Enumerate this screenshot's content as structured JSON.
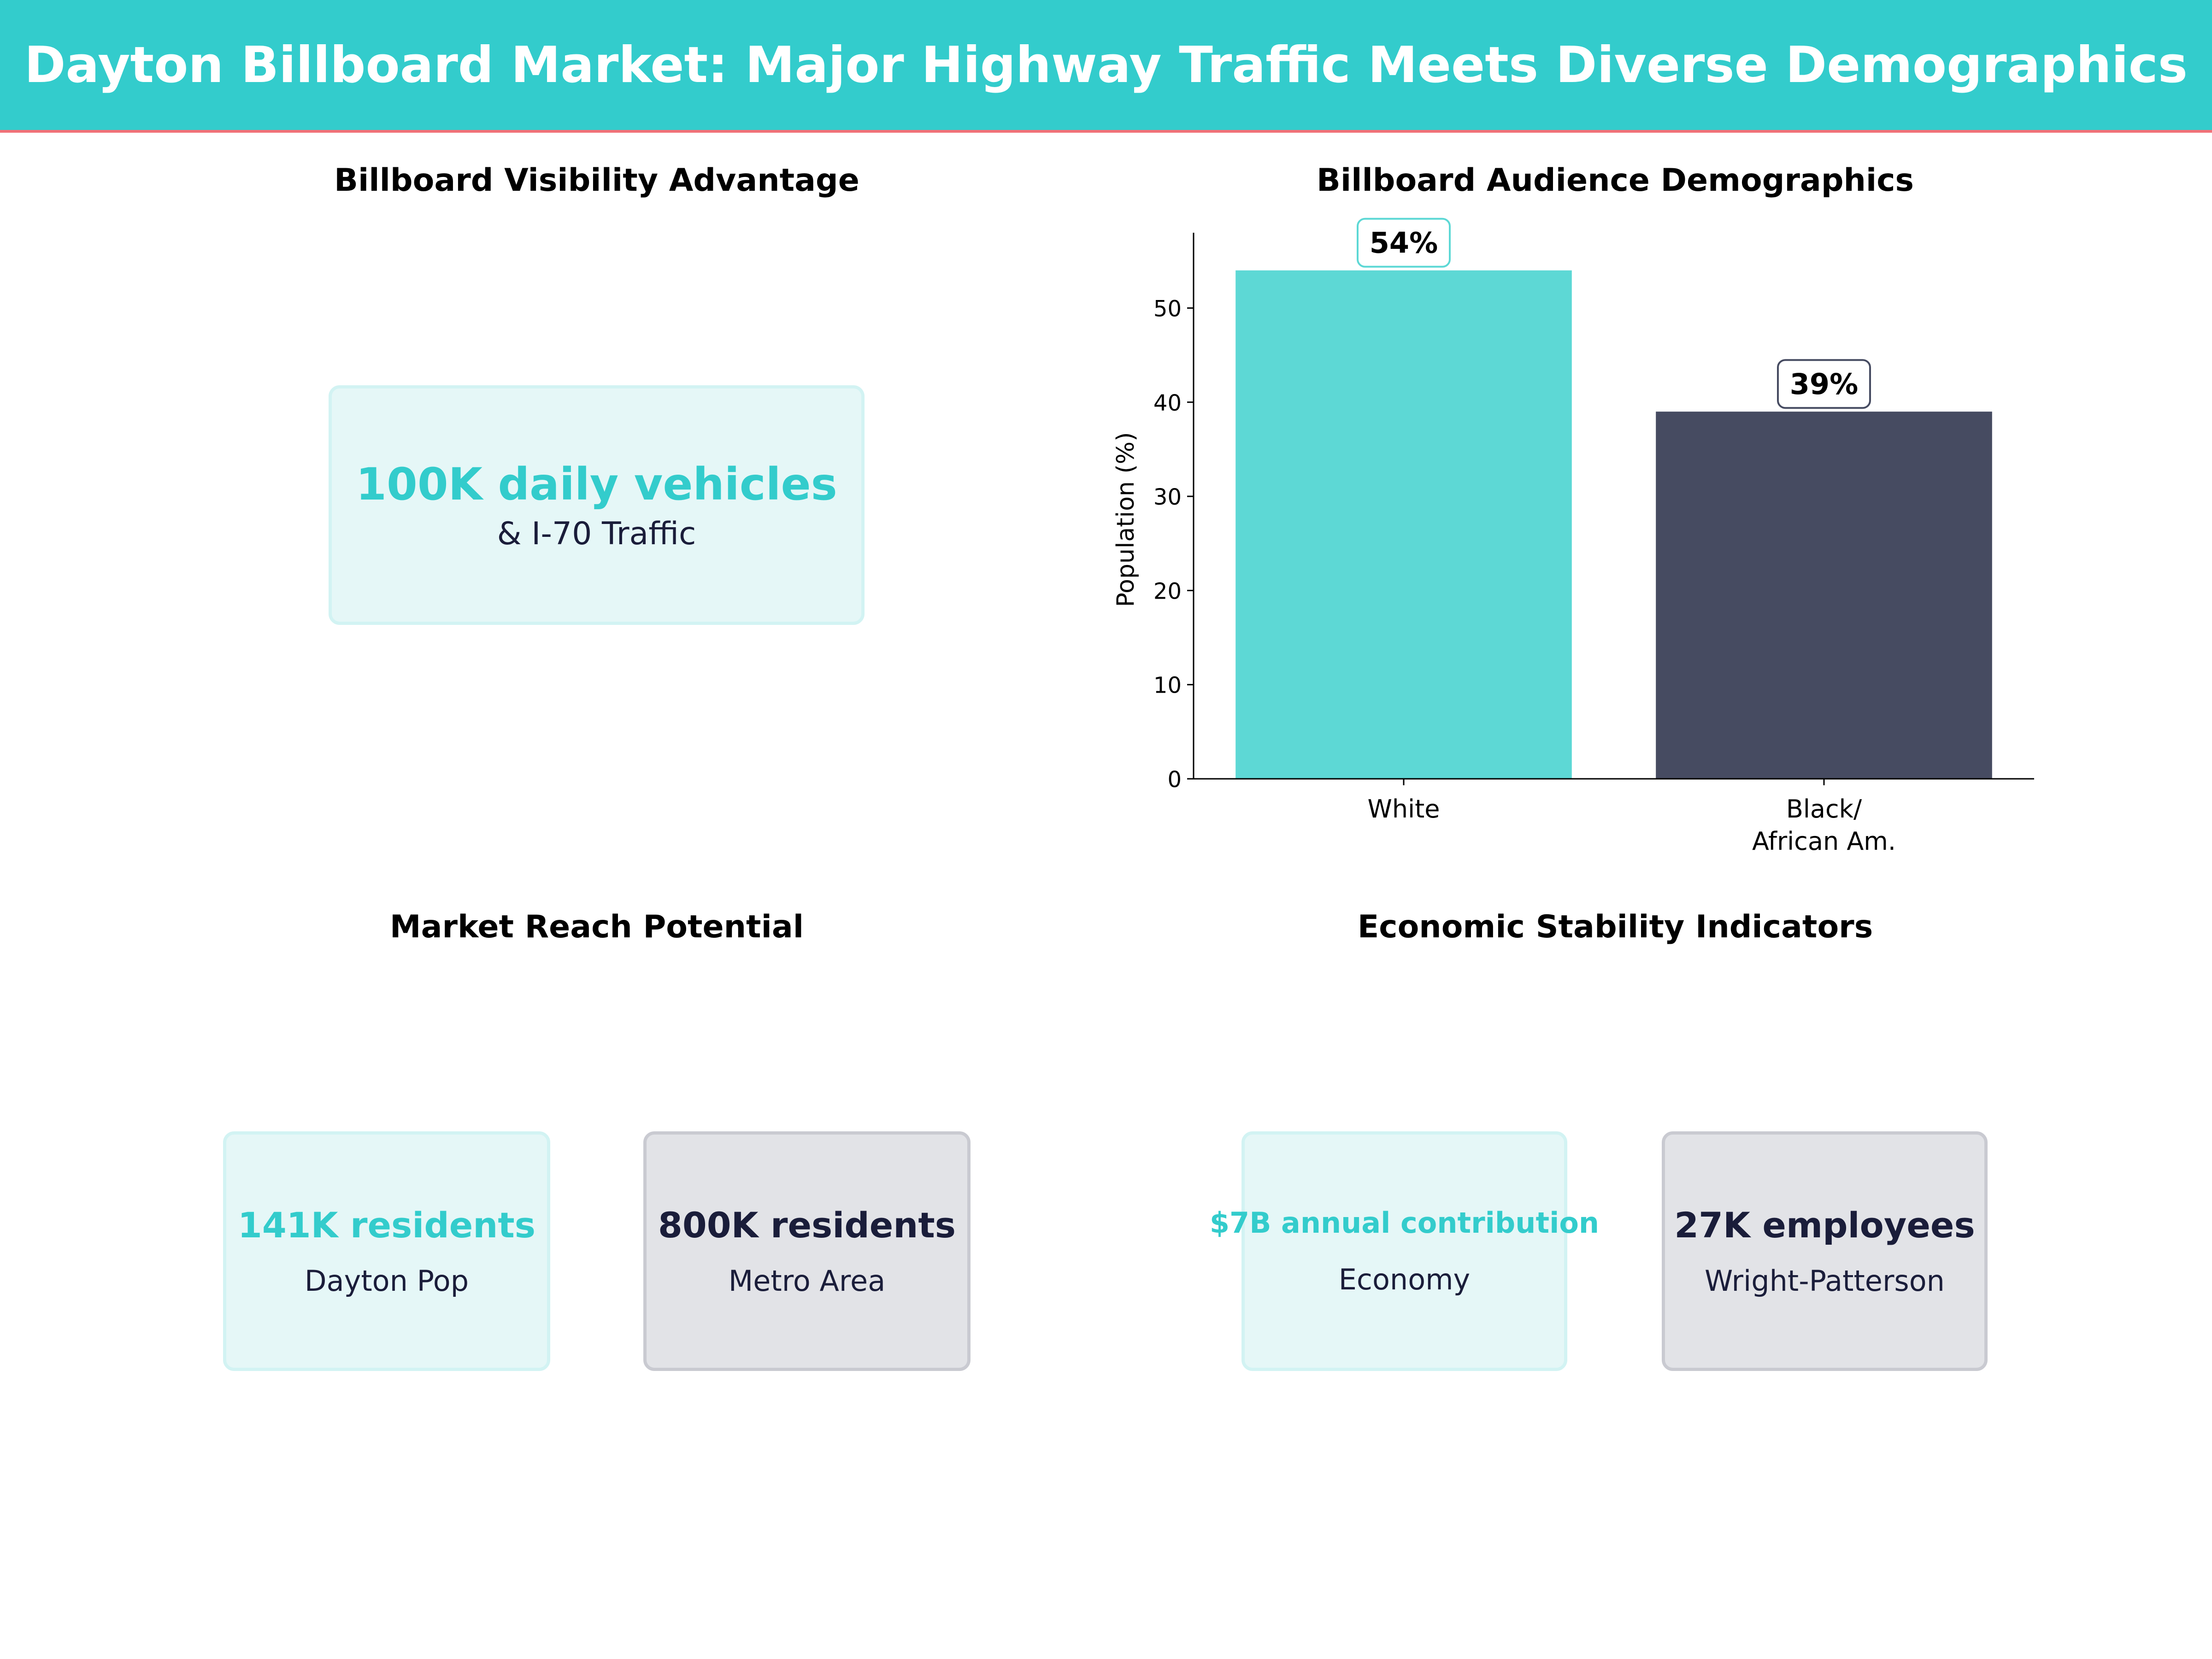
{
  "header": {
    "title": "Dayton Billboard Market: Major Highway Traffic Meets Diverse Demographics"
  },
  "colors": {
    "teal": "#33cccc",
    "bar_teal": "#5dd8d5",
    "navy": "#464b61",
    "dark_text": "#1a1d3a",
    "accent_line": "#f07178"
  },
  "visibility": {
    "title": "Billboard Visibility Advantage",
    "value": "100K daily vehicles",
    "label": "& I-70 Traffic"
  },
  "reach": {
    "title": "Market Reach Potential",
    "cards": [
      {
        "value": "141K residents",
        "label": "Dayton Pop"
      },
      {
        "value": "800K residents",
        "label": "Metro Area"
      }
    ]
  },
  "economy": {
    "title": "Economic Stability Indicators",
    "cards": [
      {
        "value": "$7B annual contribution",
        "label": "Economy"
      },
      {
        "value": "27K employees",
        "label": "Wright-Patterson"
      }
    ]
  },
  "chart_data": {
    "type": "bar",
    "title": "Billboard Audience Demographics",
    "categories": [
      "White",
      "Black/\nAfrican Am."
    ],
    "category_lines": [
      [
        "White"
      ],
      [
        "Black/",
        "African Am."
      ]
    ],
    "values": [
      54,
      39
    ],
    "data_labels": [
      "54%",
      "39%"
    ],
    "colors": [
      "#5dd8d5",
      "#464b61"
    ],
    "xlabel": "",
    "ylabel": "Population (%)",
    "ylim": [
      0,
      58
    ],
    "yticks": [
      0,
      10,
      20,
      30,
      40,
      50
    ],
    "grid": false,
    "legend": "none"
  }
}
